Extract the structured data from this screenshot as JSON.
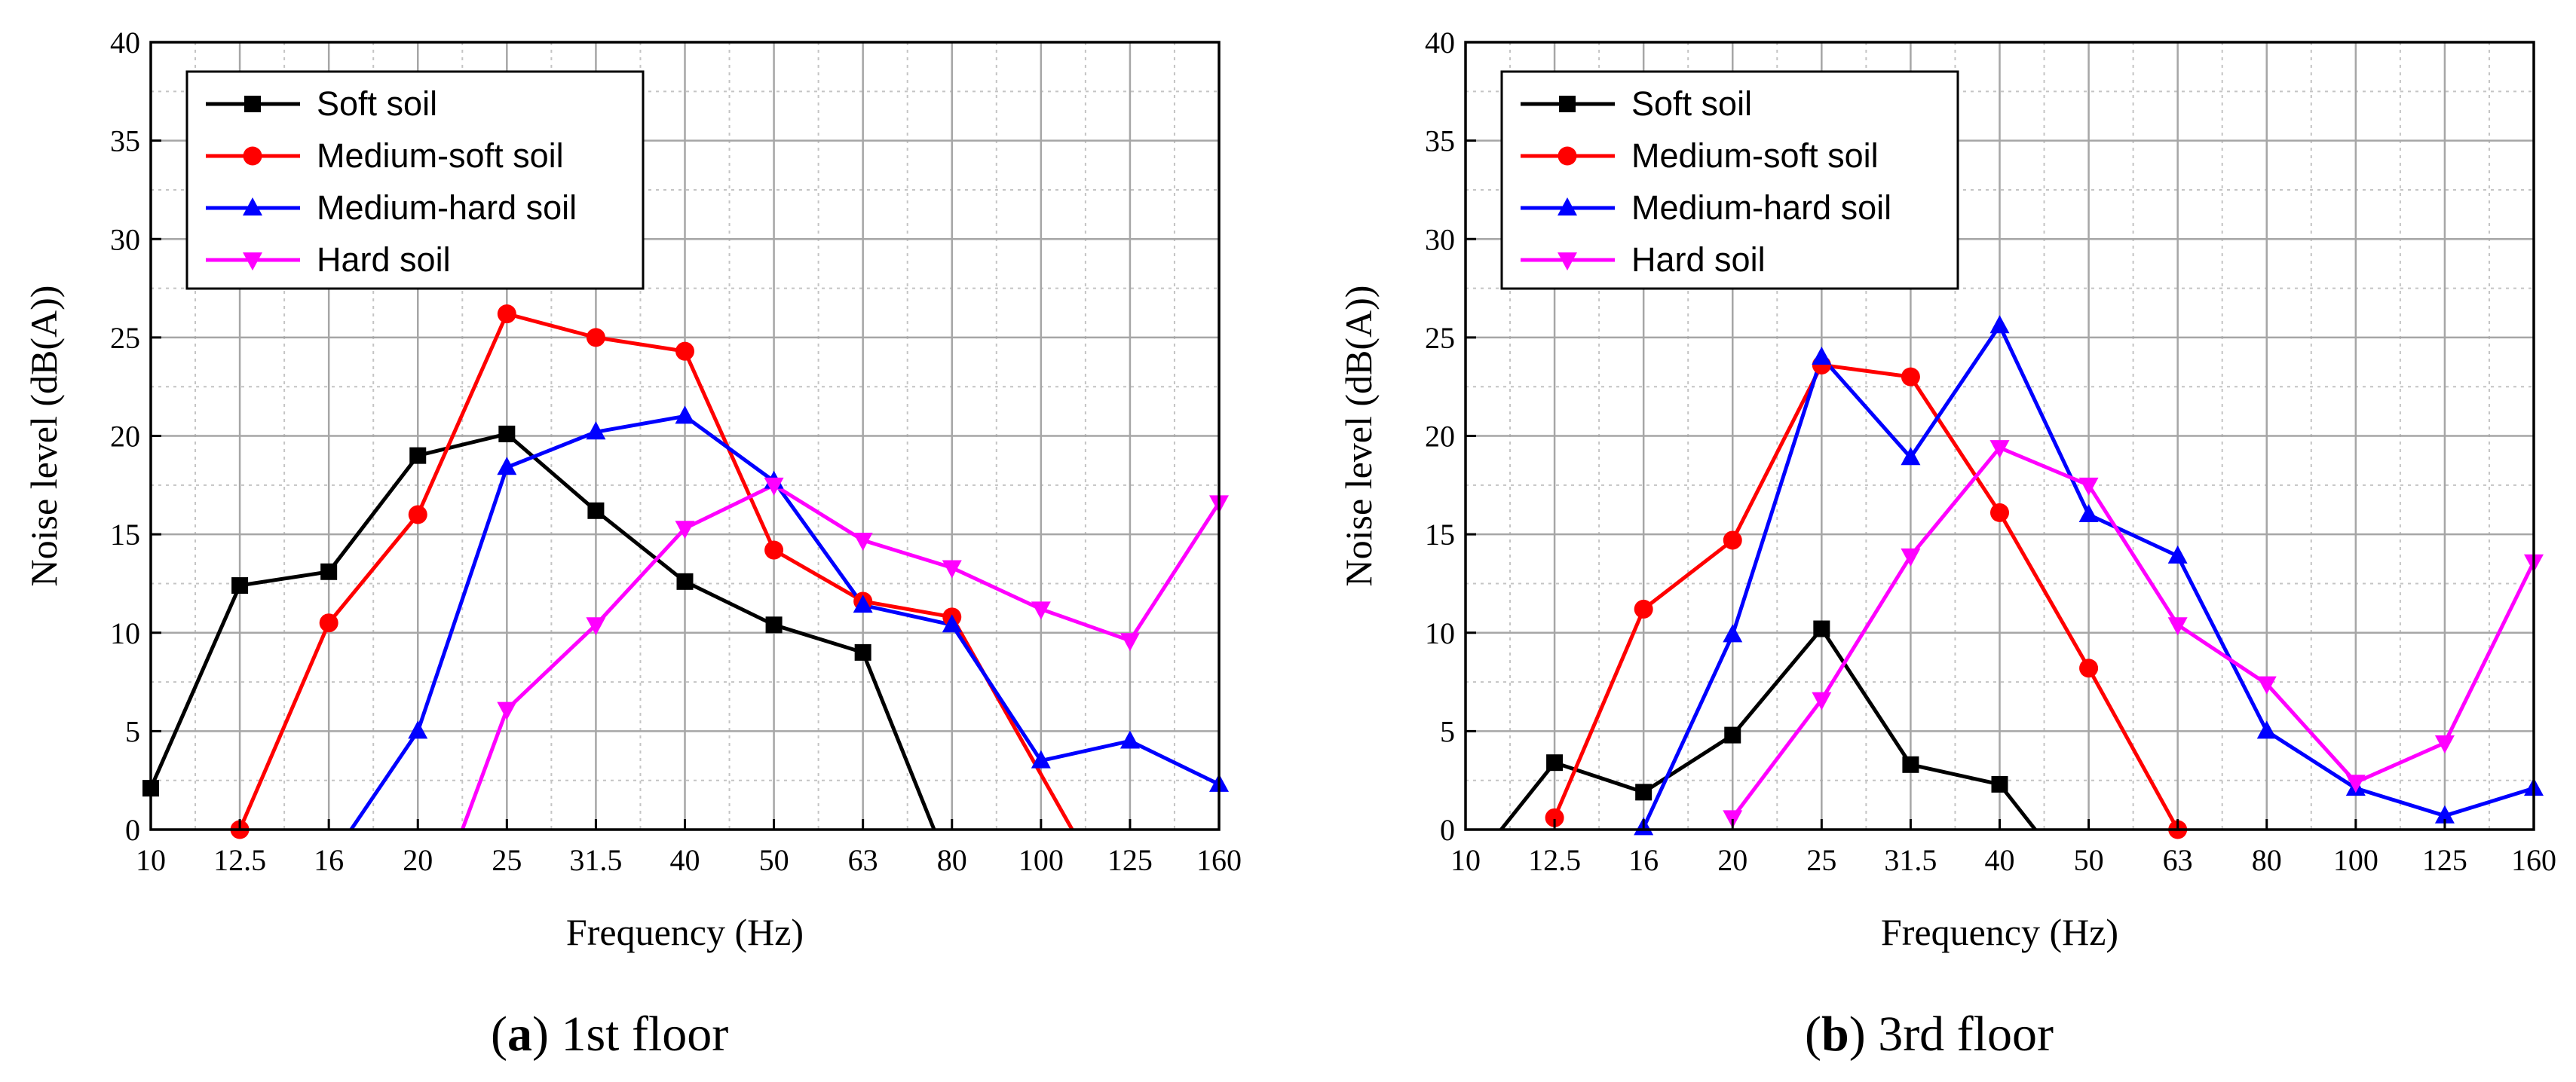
{
  "chart_data": [
    {
      "type": "line",
      "title": "1st floor",
      "panel_label": "a",
      "xlabel": "Frequency (Hz)",
      "ylabel": "Noise level (dB(A))",
      "categories": [
        "10",
        "12.5",
        "16",
        "20",
        "25",
        "31.5",
        "40",
        "50",
        "63",
        "80",
        "100",
        "125",
        "160"
      ],
      "ylim": [
        0,
        40
      ],
      "yticks": [
        0,
        5,
        10,
        15,
        20,
        25,
        30,
        35,
        40
      ],
      "grid": true,
      "legend_position": "top-left",
      "series": [
        {
          "name": "Soft soil",
          "color": "#000000",
          "marker": "square",
          "points": [
            [
              0,
              2.1
            ],
            [
              1,
              12.4
            ],
            [
              2,
              13.1
            ],
            [
              3,
              19.0
            ],
            [
              4,
              20.1
            ],
            [
              5,
              16.2
            ],
            [
              6,
              12.6
            ],
            [
              7,
              10.4
            ],
            [
              8,
              9.0
            ],
            [
              8.8,
              0
            ]
          ]
        },
        {
          "name": "Medium-soft soil",
          "color": "#ff0000",
          "marker": "circle",
          "points": [
            [
              1,
              0
            ],
            [
              2,
              10.5
            ],
            [
              3,
              16.0
            ],
            [
              4,
              26.2
            ],
            [
              5,
              25.0
            ],
            [
              6,
              24.3
            ],
            [
              7,
              14.2
            ],
            [
              8,
              11.6
            ],
            [
              9,
              10.8
            ],
            [
              10.35,
              0
            ]
          ]
        },
        {
          "name": "Medium-hard soil",
          "color": "#0000ff",
          "marker": "triangle-up",
          "points": [
            [
              2.25,
              0
            ],
            [
              3,
              5.0
            ],
            [
              4,
              18.4
            ],
            [
              5,
              20.2
            ],
            [
              6,
              21.0
            ],
            [
              7,
              17.7
            ],
            [
              8,
              11.4
            ],
            [
              9,
              10.4
            ],
            [
              10,
              3.5
            ],
            [
              11,
              4.5
            ],
            [
              12,
              2.3
            ]
          ]
        },
        {
          "name": "Hard soil",
          "color": "#ff00ff",
          "marker": "triangle-down",
          "points": [
            [
              3.5,
              0
            ],
            [
              4,
              6.1
            ],
            [
              5,
              10.4
            ],
            [
              6,
              15.3
            ],
            [
              7,
              17.5
            ],
            [
              8,
              14.7
            ],
            [
              9,
              13.3
            ],
            [
              10,
              11.2
            ],
            [
              11,
              9.6
            ],
            [
              12,
              16.6
            ]
          ]
        }
      ]
    },
    {
      "type": "line",
      "title": "3rd floor",
      "panel_label": "b",
      "xlabel": "Frequency (Hz)",
      "ylabel": "Noise level (dB(A))",
      "categories": [
        "10",
        "12.5",
        "16",
        "20",
        "25",
        "31.5",
        "40",
        "50",
        "63",
        "80",
        "100",
        "125",
        "160"
      ],
      "ylim": [
        0,
        40
      ],
      "yticks": [
        0,
        5,
        10,
        15,
        20,
        25,
        30,
        35,
        40
      ],
      "grid": true,
      "legend_position": "top-left",
      "series": [
        {
          "name": "Soft soil",
          "color": "#000000",
          "marker": "square",
          "points": [
            [
              0.4,
              0
            ],
            [
              1,
              3.4
            ],
            [
              2,
              1.9
            ],
            [
              3,
              4.8
            ],
            [
              4,
              10.2
            ],
            [
              5,
              3.3
            ],
            [
              6,
              2.3
            ],
            [
              6.4,
              0
            ]
          ]
        },
        {
          "name": "Medium-soft soil",
          "color": "#ff0000",
          "marker": "circle",
          "points": [
            [
              1,
              0.6
            ],
            [
              2,
              11.2
            ],
            [
              3,
              14.7
            ],
            [
              4,
              23.6
            ],
            [
              5,
              23.0
            ],
            [
              6,
              16.1
            ],
            [
              7,
              8.2
            ],
            [
              8,
              0
            ]
          ]
        },
        {
          "name": "Medium-hard soil",
          "color": "#0000ff",
          "marker": "triangle-up",
          "points": [
            [
              2,
              0.1
            ],
            [
              3,
              9.9
            ],
            [
              4,
              24.0
            ],
            [
              5,
              18.9
            ],
            [
              6,
              25.6
            ],
            [
              7,
              16.0
            ],
            [
              8,
              13.9
            ],
            [
              9,
              5.0
            ],
            [
              10,
              2.1
            ],
            [
              11,
              0.7
            ],
            [
              12,
              2.1
            ]
          ]
        },
        {
          "name": "Hard soil",
          "color": "#ff00ff",
          "marker": "triangle-down",
          "points": [
            [
              3,
              0.6
            ],
            [
              4,
              6.6
            ],
            [
              5,
              13.9
            ],
            [
              6,
              19.4
            ],
            [
              7,
              17.5
            ],
            [
              8,
              10.4
            ],
            [
              9,
              7.4
            ],
            [
              10,
              2.4
            ],
            [
              11,
              4.4
            ],
            [
              12,
              13.6
            ]
          ]
        }
      ]
    }
  ],
  "captions": [
    {
      "label": "a",
      "text": "1st floor"
    },
    {
      "label": "b",
      "text": "3rd floor"
    }
  ]
}
